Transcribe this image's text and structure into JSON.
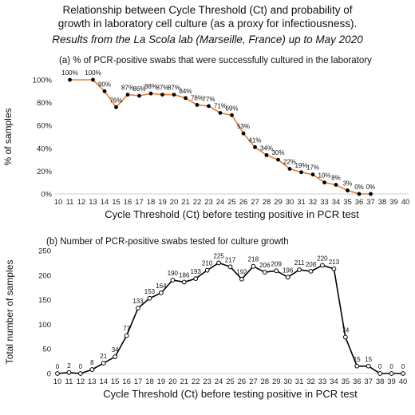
{
  "header": {
    "title_line1": "Relationship between Cycle Threshold (Ct) and probability of",
    "title_line2": "growth in laboratory cell culture (as a proxy for infectiousness).",
    "subtitle": "Results from the La Scola lab (Marseille, France) up to May 2020"
  },
  "chart_data": [
    {
      "type": "line",
      "title": "(a) % of PCR-positive swabs that were successfully cultured in the laboratory",
      "xlabel": "Cycle Threshold (Ct) before testing positive in PCR test",
      "ylabel": "% of samples",
      "x_ticks": [
        "10",
        "11",
        "12",
        "13",
        "14",
        "15",
        "16",
        "17",
        "18",
        "19",
        "20",
        "21",
        "22",
        "23",
        "24",
        "25",
        "26",
        "27",
        "28",
        "29",
        "30",
        "31",
        "32",
        "33",
        "34",
        "35",
        "36",
        "37",
        "38",
        "39",
        "40"
      ],
      "y_ticks": [
        "0%",
        "20%",
        "40%",
        "60%",
        "80%",
        "100%"
      ],
      "xlim": [
        10,
        40
      ],
      "ylim": [
        0,
        100
      ],
      "grid": false,
      "line_color": "#ED7D31",
      "marker_color": "#000000",
      "points": [
        {
          "x": 11,
          "y": 100,
          "label": "100%"
        },
        {
          "x": 13,
          "y": 100,
          "label": "100%"
        },
        {
          "x": 14,
          "y": 90,
          "label": "90%"
        },
        {
          "x": 15,
          "y": 76,
          "label": "76%"
        },
        {
          "x": 16,
          "y": 87,
          "label": "87%"
        },
        {
          "x": 17,
          "y": 86,
          "label": "86%"
        },
        {
          "x": 18,
          "y": 88,
          "label": "88%"
        },
        {
          "x": 19,
          "y": 87,
          "label": "87%"
        },
        {
          "x": 20,
          "y": 87,
          "label": "87%"
        },
        {
          "x": 21,
          "y": 84,
          "label": "84%"
        },
        {
          "x": 22,
          "y": 78,
          "label": "78%"
        },
        {
          "x": 23,
          "y": 77,
          "label": "77%"
        },
        {
          "x": 24,
          "y": 71,
          "label": "71%"
        },
        {
          "x": 25,
          "y": 69,
          "label": "69%"
        },
        {
          "x": 26,
          "y": 53,
          "label": "53%"
        },
        {
          "x": 27,
          "y": 41,
          "label": "41%"
        },
        {
          "x": 28,
          "y": 34,
          "label": "34%"
        },
        {
          "x": 29,
          "y": 30,
          "label": "30%"
        },
        {
          "x": 30,
          "y": 22,
          "label": "22%"
        },
        {
          "x": 31,
          "y": 19,
          "label": "19%"
        },
        {
          "x": 32,
          "y": 17,
          "label": "17%"
        },
        {
          "x": 33,
          "y": 10,
          "label": "10%"
        },
        {
          "x": 34,
          "y": 8,
          "label": "8%"
        },
        {
          "x": 35,
          "y": 3,
          "label": "3%"
        },
        {
          "x": 36,
          "y": 0,
          "label": "0%"
        },
        {
          "x": 37,
          "y": 0,
          "label": "0%"
        }
      ]
    },
    {
      "type": "line",
      "title": "(b) Number of PCR-positive swabs tested for culture growth",
      "xlabel": "Cycle Threshold (Ct) before testing positive in PCR test",
      "ylabel": "Total number of samples",
      "x_ticks": [
        "10",
        "11",
        "12",
        "13",
        "14",
        "15",
        "16",
        "17",
        "18",
        "19",
        "20",
        "21",
        "22",
        "23",
        "24",
        "25",
        "26",
        "27",
        "28",
        "29",
        "30",
        "31",
        "32",
        "33",
        "34",
        "35",
        "36",
        "37",
        "38",
        "39",
        "40"
      ],
      "y_ticks": [
        "0",
        "50",
        "100",
        "150",
        "200",
        "250"
      ],
      "xlim": [
        10,
        40
      ],
      "ylim": [
        0,
        250
      ],
      "grid": false,
      "line_color": "#000000",
      "marker_color": "#ffffff",
      "points": [
        {
          "x": 10,
          "y": 0,
          "label": "0"
        },
        {
          "x": 11,
          "y": 2,
          "label": "2"
        },
        {
          "x": 12,
          "y": 0,
          "label": "0"
        },
        {
          "x": 13,
          "y": 8,
          "label": "8"
        },
        {
          "x": 14,
          "y": 21,
          "label": "21"
        },
        {
          "x": 15,
          "y": 34,
          "label": "34"
        },
        {
          "x": 16,
          "y": 77,
          "label": "77"
        },
        {
          "x": 17,
          "y": 133,
          "label": "133"
        },
        {
          "x": 18,
          "y": 153,
          "label": "153"
        },
        {
          "x": 19,
          "y": 164,
          "label": "164"
        },
        {
          "x": 20,
          "y": 190,
          "label": "190"
        },
        {
          "x": 21,
          "y": 186,
          "label": "186"
        },
        {
          "x": 22,
          "y": 193,
          "label": "193"
        },
        {
          "x": 23,
          "y": 210,
          "label": "210"
        },
        {
          "x": 24,
          "y": 225,
          "label": "225"
        },
        {
          "x": 25,
          "y": 217,
          "label": "217"
        },
        {
          "x": 26,
          "y": 192,
          "label": "192"
        },
        {
          "x": 27,
          "y": 218,
          "label": "218"
        },
        {
          "x": 28,
          "y": 206,
          "label": "206"
        },
        {
          "x": 29,
          "y": 209,
          "label": "209"
        },
        {
          "x": 30,
          "y": 196,
          "label": "196"
        },
        {
          "x": 31,
          "y": 211,
          "label": "211"
        },
        {
          "x": 32,
          "y": 208,
          "label": "208"
        },
        {
          "x": 33,
          "y": 220,
          "label": "220"
        },
        {
          "x": 34,
          "y": 213,
          "label": "213"
        },
        {
          "x": 35,
          "y": 74,
          "label": "74"
        },
        {
          "x": 36,
          "y": 15,
          "label": "15"
        },
        {
          "x": 37,
          "y": 15,
          "label": "15"
        },
        {
          "x": 38,
          "y": 0,
          "label": "0"
        },
        {
          "x": 39,
          "y": 0,
          "label": "0"
        },
        {
          "x": 40,
          "y": 0,
          "label": "0"
        }
      ]
    }
  ]
}
